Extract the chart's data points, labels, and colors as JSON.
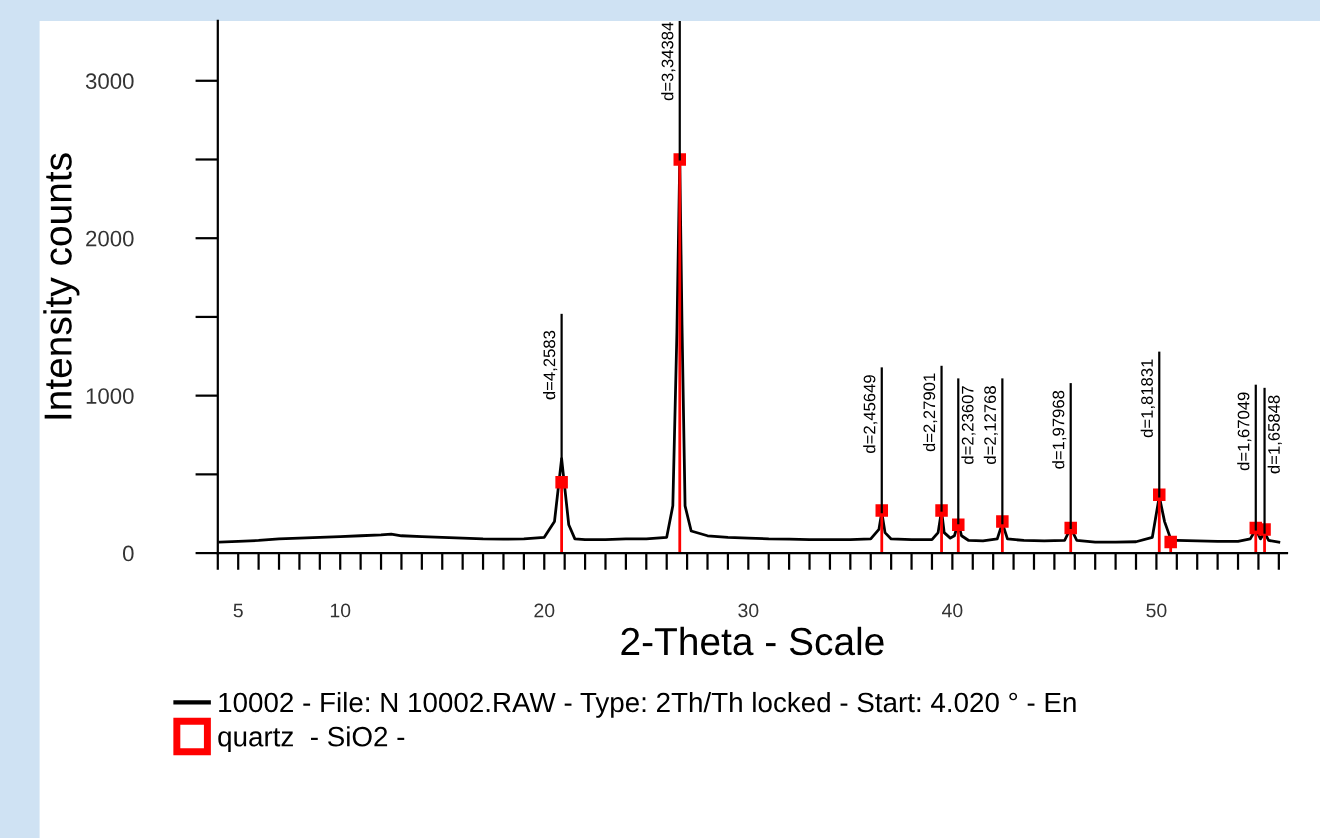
{
  "chart_data": {
    "type": "line",
    "xlabel": "2-Theta - Scale",
    "ylabel": "Intensity counts",
    "xlim": [
      4.0,
      56.4
    ],
    "ylim": [
      0,
      3380
    ],
    "xticks": [
      {
        "value": 4,
        "label": null
      },
      5,
      {
        "value": 6,
        "label": null
      },
      {
        "value": 7,
        "label": null
      },
      {
        "value": 8,
        "label": null
      },
      {
        "value": 9,
        "label": null
      },
      10,
      {
        "value": 11,
        "label": null
      },
      {
        "value": 12,
        "label": null
      },
      {
        "value": 13,
        "label": null
      },
      {
        "value": 14,
        "label": null
      },
      {
        "value": 15,
        "label": null
      },
      {
        "value": 16,
        "label": null
      },
      {
        "value": 17,
        "label": null
      },
      {
        "value": 18,
        "label": null
      },
      {
        "value": 19,
        "label": null
      },
      20,
      {
        "value": 21,
        "label": null
      },
      {
        "value": 22,
        "label": null
      },
      {
        "value": 23,
        "label": null
      },
      {
        "value": 24,
        "label": null
      },
      {
        "value": 25,
        "label": null
      },
      {
        "value": 26,
        "label": null
      },
      {
        "value": 27,
        "label": null
      },
      {
        "value": 28,
        "label": null
      },
      {
        "value": 29,
        "label": null
      },
      30,
      {
        "value": 31,
        "label": null
      },
      {
        "value": 32,
        "label": null
      },
      {
        "value": 33,
        "label": null
      },
      {
        "value": 34,
        "label": null
      },
      {
        "value": 35,
        "label": null
      },
      {
        "value": 36,
        "label": null
      },
      {
        "value": 37,
        "label": null
      },
      {
        "value": 38,
        "label": null
      },
      {
        "value": 39,
        "label": null
      },
      40,
      {
        "value": 41,
        "label": null
      },
      {
        "value": 42,
        "label": null
      },
      {
        "value": 43,
        "label": null
      },
      {
        "value": 44,
        "label": null
      },
      {
        "value": 45,
        "label": null
      },
      {
        "value": 46,
        "label": null
      },
      {
        "value": 47,
        "label": null
      },
      {
        "value": 48,
        "label": null
      },
      {
        "value": 49,
        "label": null
      },
      50,
      {
        "value": 51,
        "label": null
      },
      {
        "value": 52,
        "label": null
      },
      {
        "value": 53,
        "label": null
      },
      {
        "value": 54,
        "label": null
      },
      {
        "value": 55,
        "label": null
      },
      {
        "value": 56,
        "label": null
      }
    ],
    "yticks": [
      0,
      {
        "value": 500,
        "label": null
      },
      1000,
      {
        "value": 1500,
        "label": null
      },
      2000,
      {
        "value": 2500,
        "label": null
      },
      3000
    ],
    "grid": false,
    "legend": "bottom",
    "series": [
      {
        "name": "10002 - File: N 10002.RAW - Type: 2Th/Th locked - Start: 4.020 ° - En",
        "color": "#000000",
        "marker": "none",
        "x": [
          4.1,
          5,
          6,
          7,
          8,
          9,
          10,
          11,
          12,
          12.5,
          13,
          14,
          15,
          16,
          17,
          18,
          19,
          20,
          20.5,
          20.85,
          21.2,
          21.5,
          22,
          23,
          24,
          25,
          26,
          26.3,
          26.5,
          26.64,
          26.75,
          26.9,
          27.2,
          28,
          29,
          30,
          31,
          32,
          33,
          34,
          35,
          36,
          36.4,
          36.54,
          36.7,
          37,
          38,
          39,
          39.3,
          39.47,
          39.6,
          39.9,
          40.1,
          40.29,
          40.45,
          40.8,
          41.5,
          42.2,
          42.45,
          42.7,
          43.5,
          44.5,
          45.5,
          45.8,
          46.1,
          47,
          48,
          49,
          49.8,
          50.14,
          50.4,
          50.7,
          51,
          52,
          53,
          54,
          54.6,
          54.87,
          55.1,
          55.3,
          55.5,
          56
        ],
        "values": [
          70,
          75,
          80,
          90,
          95,
          100,
          105,
          110,
          115,
          120,
          110,
          105,
          100,
          95,
          90,
          88,
          90,
          100,
          200,
          600,
          180,
          90,
          85,
          85,
          90,
          90,
          100,
          300,
          1400,
          2500,
          1450,
          300,
          140,
          110,
          100,
          95,
          90,
          88,
          85,
          85,
          85,
          90,
          150,
          260,
          130,
          90,
          85,
          85,
          130,
          270,
          130,
          95,
          110,
          190,
          110,
          80,
          78,
          90,
          190,
          90,
          80,
          78,
          80,
          160,
          80,
          70,
          70,
          72,
          100,
          360,
          200,
          90,
          80,
          78,
          75,
          75,
          90,
          150,
          90,
          130,
          80,
          70
        ]
      },
      {
        "name": "quartz  - SiO2 -",
        "type": "lollipop",
        "color": "#ff0000",
        "marker": "square",
        "x": [
          20.85,
          26.64,
          36.54,
          39.47,
          40.29,
          42.45,
          45.8,
          50.14,
          50.7,
          54.87,
          55.3
        ],
        "values": [
          450,
          2500,
          270,
          270,
          180,
          200,
          160,
          370,
          70,
          160,
          150
        ]
      }
    ],
    "annotations": [
      {
        "text": "d=4,2583",
        "x": 20.85,
        "y": 600
      },
      {
        "text": "d=3,34384",
        "x": 26.64,
        "y": 2500
      },
      {
        "text": "d=2,45649",
        "x": 36.54,
        "y": 260
      },
      {
        "text": "d=2,27901",
        "x": 39.47,
        "y": 270
      },
      {
        "text": "d=2,23607",
        "x": 40.29,
        "y": 190
      },
      {
        "text": "d=2,12768",
        "x": 42.45,
        "y": 190
      },
      {
        "text": "d=1,97968",
        "x": 45.8,
        "y": 160
      },
      {
        "text": "d=1,81831",
        "x": 50.14,
        "y": 360
      },
      {
        "text": "d=1,67049",
        "x": 54.87,
        "y": 150
      },
      {
        "text": "d=1,65848",
        "x": 55.3,
        "y": 130
      }
    ]
  }
}
